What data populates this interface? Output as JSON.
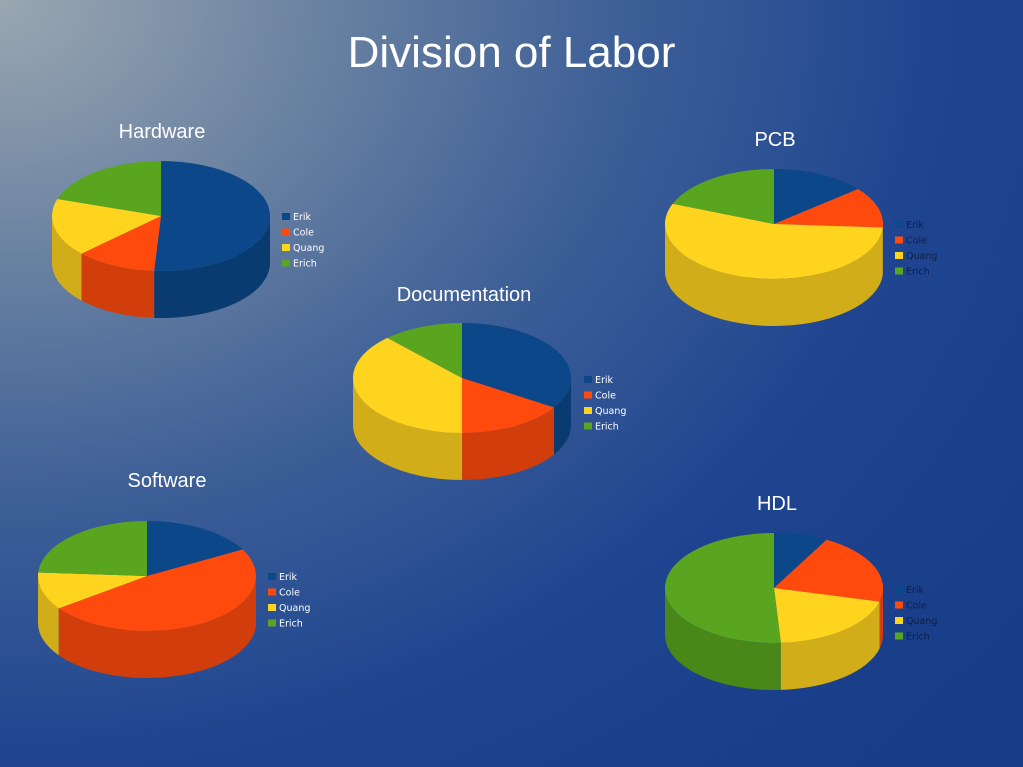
{
  "slide": {
    "title": "Division of Labor"
  },
  "colors": {
    "Erik": "#0b4789",
    "Cole": "#ff4a0d",
    "Quang": "#ffd41e",
    "Erich": "#5aa51f"
  },
  "chart_data": [
    {
      "type": "pie",
      "title": "Hardware",
      "categories": [
        "Erik",
        "Cole",
        "Quang",
        "Erich"
      ],
      "values": [
        51,
        12,
        17,
        20
      ],
      "unit": "%",
      "legend": "right"
    },
    {
      "type": "pie",
      "title": "PCB",
      "categories": [
        "Erik",
        "Cole",
        "Quang",
        "Erich"
      ],
      "values": [
        14,
        12,
        55,
        19
      ],
      "unit": "%",
      "legend": "right"
    },
    {
      "type": "pie",
      "title": "Documentation",
      "categories": [
        "Erik",
        "Cole",
        "Quang",
        "Erich"
      ],
      "values": [
        34,
        16,
        38,
        12
      ],
      "unit": "%",
      "legend": "right"
    },
    {
      "type": "pie",
      "title": "Software",
      "categories": [
        "Erik",
        "Cole",
        "Quang",
        "Erich"
      ],
      "values": [
        17,
        48,
        11,
        24
      ],
      "unit": "%",
      "legend": "right"
    },
    {
      "type": "pie",
      "title": "HDL",
      "categories": [
        "Erik",
        "Cole",
        "Quang",
        "Erich"
      ],
      "values": [
        8,
        21,
        20,
        51
      ],
      "unit": "%",
      "legend": "right"
    }
  ]
}
